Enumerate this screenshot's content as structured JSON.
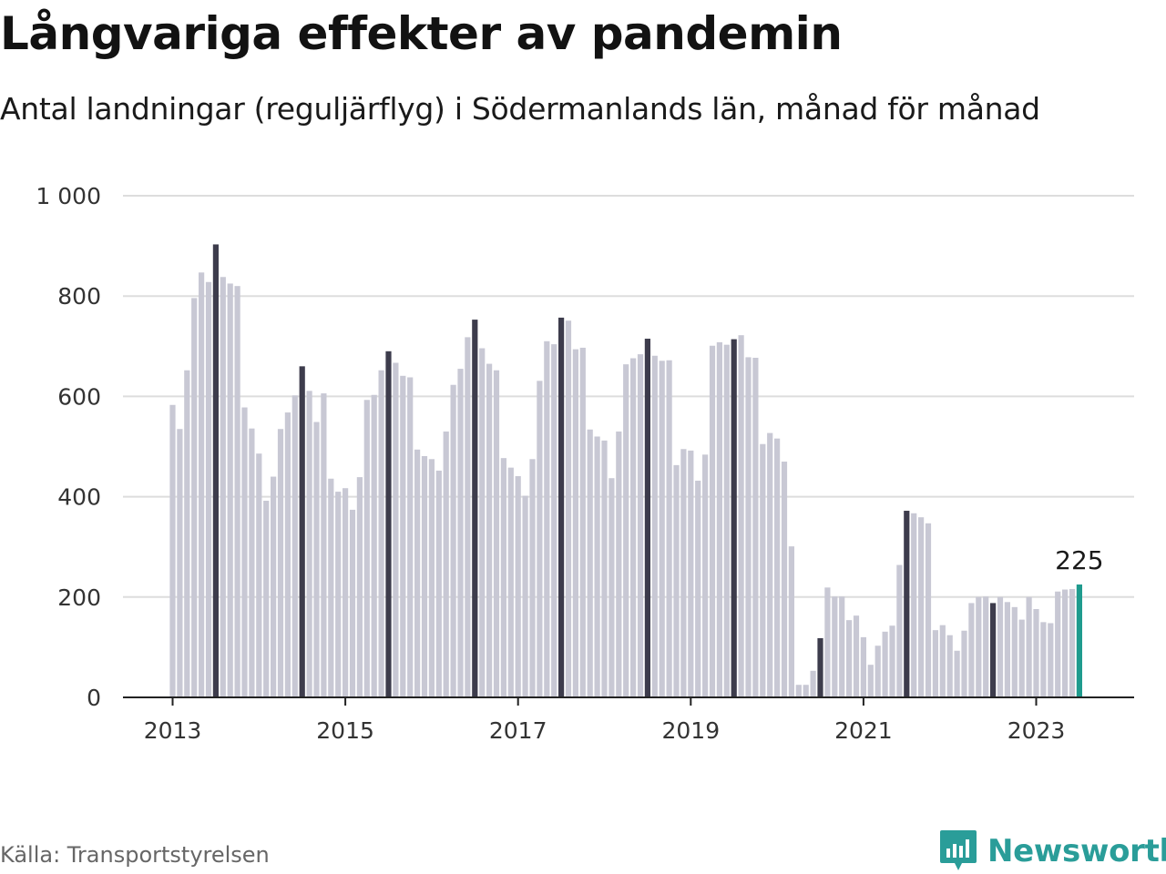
{
  "header": {
    "title": "Långvariga effekter av pandemin",
    "subtitle": "Antal landningar (reguljärflyg) i Södermanlands län, månad för månad"
  },
  "footer": {
    "source": "Källa: Transportstyrelsen",
    "brand": "Newsworthy",
    "brand_icon": "newsworthy-logo-icon",
    "brand_color": "#2a9d99"
  },
  "colors": {
    "bar": "#c8c8d4",
    "bar_july": "#3d3c4c",
    "bar_latest": "#1f9b8e",
    "grid": "#dddddd",
    "axis": "#222222"
  },
  "chart_data": {
    "type": "bar",
    "title": "Långvariga effekter av pandemin",
    "subtitle": "Antal landningar (reguljärflyg) i Södermanlands län, månad för månad",
    "x_start": "2013-01",
    "x_end": "2023-07",
    "xticks": [
      "2013",
      "2015",
      "2017",
      "2019",
      "2021",
      "2023"
    ],
    "yticks": [
      "0",
      "200",
      "400",
      "600",
      "800",
      "1 000"
    ],
    "ylim": [
      0,
      1000
    ],
    "grid": true,
    "highlight": "July of each year shown dark; latest month (July 2023) shown teal with label",
    "latest_label": "225",
    "values": [
      583,
      535,
      652,
      796,
      847,
      828,
      903,
      838,
      825,
      820,
      578,
      536,
      486,
      392,
      440,
      535,
      568,
      602,
      660,
      611,
      549,
      606,
      436,
      410,
      417,
      374,
      439,
      593,
      603,
      652,
      690,
      667,
      641,
      638,
      494,
      481,
      475,
      452,
      530,
      623,
      655,
      718,
      753,
      696,
      665,
      652,
      477,
      458,
      441,
      402,
      475,
      631,
      710,
      704,
      757,
      751,
      694,
      697,
      534,
      520,
      512,
      437,
      530,
      664,
      676,
      684,
      715,
      681,
      671,
      672,
      463,
      495,
      492,
      432,
      484,
      701,
      708,
      703,
      714,
      722,
      678,
      677,
      505,
      527,
      516,
      470,
      301,
      25,
      25,
      53,
      118,
      219,
      201,
      201,
      154,
      163,
      120,
      65,
      103,
      131,
      143,
      264,
      372,
      367,
      359,
      347,
      134,
      144,
      124,
      93,
      133,
      188,
      200,
      201,
      188,
      200,
      190,
      180,
      155,
      200,
      176,
      150,
      148,
      211,
      215,
      216,
      225
    ]
  }
}
